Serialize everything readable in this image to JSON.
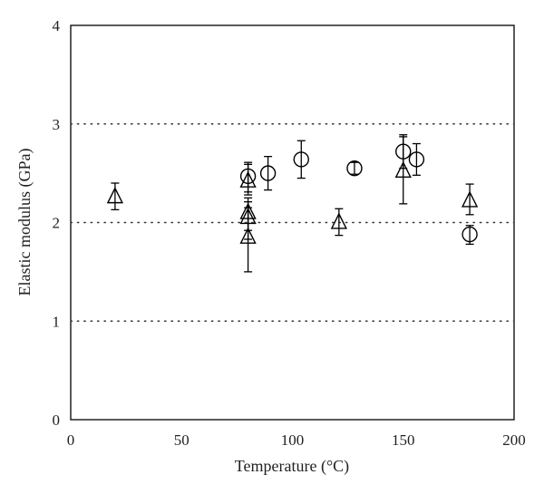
{
  "chart_data": {
    "type": "scatter",
    "title": "",
    "xlabel": "Temperature (°C)",
    "ylabel": "Elastic modulus (GPa)",
    "xlim": [
      0,
      200
    ],
    "ylim": [
      0,
      4
    ],
    "x_ticks": [
      "0",
      "50",
      "100",
      "150",
      "200"
    ],
    "y_ticks": [
      "0",
      "1",
      "2",
      "3",
      "4"
    ],
    "x_tick_values": [
      0,
      50,
      100,
      150,
      200
    ],
    "y_tick_values": [
      0,
      1,
      2,
      3,
      4
    ],
    "grid": {
      "y_dotted_at": [
        1,
        2,
        3
      ]
    },
    "legend": "none",
    "series": [
      {
        "marker": "triangle",
        "points": [
          {
            "x": 20,
            "y": 2.26,
            "err_lo": 0.13,
            "err_hi": 0.14
          },
          {
            "x": 80,
            "y": 2.42,
            "err_lo": 0.14,
            "err_hi": 0.17
          },
          {
            "x": 80,
            "y": 2.1,
            "err_lo": 0.18,
            "err_hi": 0.15
          },
          {
            "x": 80,
            "y": 2.05,
            "err_lo": 0.22,
            "err_hi": 0.16
          },
          {
            "x": 80,
            "y": 1.85,
            "err_lo": 0.35,
            "err_hi": 0.3
          },
          {
            "x": 121,
            "y": 2.0,
            "err_lo": 0.13,
            "err_hi": 0.14
          },
          {
            "x": 150,
            "y": 2.52,
            "err_lo": 0.33,
            "err_hi": 0.35
          },
          {
            "x": 180,
            "y": 2.22,
            "err_lo": 0.14,
            "err_hi": 0.17
          }
        ]
      },
      {
        "marker": "circle",
        "points": [
          {
            "x": 80,
            "y": 2.47,
            "err_lo": 0.16,
            "err_hi": 0.14
          },
          {
            "x": 89,
            "y": 2.5,
            "err_lo": 0.17,
            "err_hi": 0.17
          },
          {
            "x": 104,
            "y": 2.64,
            "err_lo": 0.19,
            "err_hi": 0.19
          },
          {
            "x": 128,
            "y": 2.55,
            "err_lo": 0.06,
            "err_hi": 0.06
          },
          {
            "x": 150,
            "y": 2.72,
            "err_lo": 0.17,
            "err_hi": 0.17
          },
          {
            "x": 156,
            "y": 2.64,
            "err_lo": 0.16,
            "err_hi": 0.16
          },
          {
            "x": 180,
            "y": 1.88,
            "err_lo": 0.1,
            "err_hi": 0.09
          }
        ]
      }
    ]
  }
}
